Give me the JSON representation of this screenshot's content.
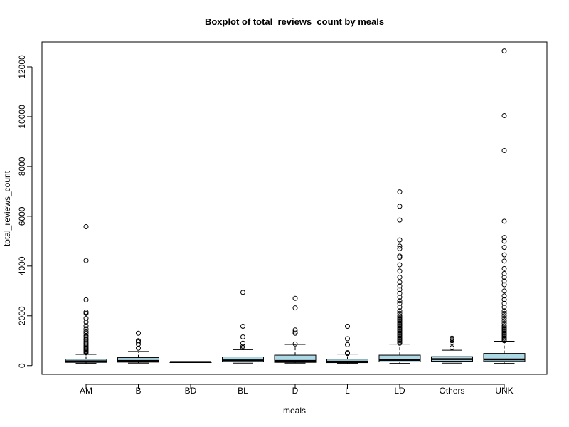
{
  "chart_data": {
    "type": "boxplot",
    "title": "Boxplot of total_reviews_count by meals",
    "xlabel": "meals",
    "ylabel": "total_reviews_count",
    "ylim": [
      -350,
      13000
    ],
    "yticks": [
      0,
      2000,
      4000,
      6000,
      8000,
      10000,
      12000
    ],
    "box_color": "#add8e6",
    "categories": [
      "AM",
      "B",
      "BD",
      "BL",
      "D",
      "L",
      "LD",
      "Others",
      "UNK"
    ],
    "boxes": [
      {
        "category": "AM",
        "whisker_low": 90,
        "q1": 130,
        "median": 175,
        "q3": 260,
        "whisker_high": 450,
        "outliers": [
          510,
          540,
          580,
          620,
          660,
          700,
          740,
          790,
          850,
          900,
          960,
          1030,
          1080,
          1150,
          1200,
          1300,
          1380,
          1480,
          1600,
          1750,
          1900,
          2100,
          2150,
          2640,
          4220,
          5580
        ]
      },
      {
        "category": "B",
        "whisker_low": 100,
        "q1": 140,
        "median": 190,
        "q3": 320,
        "whisker_high": 570,
        "outliers": [
          700,
          860,
          950,
          1000,
          1300
        ]
      },
      {
        "category": "BD",
        "whisker_low": 135,
        "q1": 140,
        "median": 145,
        "q3": 150,
        "whisker_high": 155,
        "outliers": []
      },
      {
        "category": "BL",
        "whisker_low": 100,
        "q1": 150,
        "median": 210,
        "q3": 350,
        "whisker_high": 640,
        "outliers": [
          720,
          780,
          900,
          1150,
          1580,
          2940
        ]
      },
      {
        "category": "D",
        "whisker_low": 100,
        "q1": 130,
        "median": 190,
        "q3": 420,
        "whisker_high": 850,
        "outliers": [
          870,
          1300,
          1350,
          1430,
          2320,
          2700
        ]
      },
      {
        "category": "L",
        "whisker_low": 90,
        "q1": 120,
        "median": 160,
        "q3": 260,
        "whisker_high": 460,
        "outliers": [
          490,
          520,
          840,
          1080,
          1580
        ]
      },
      {
        "category": "LD",
        "whisker_low": 90,
        "q1": 150,
        "median": 230,
        "q3": 420,
        "whisker_high": 860,
        "outliers": [
          900,
          950,
          1000,
          1050,
          1100,
          1150,
          1200,
          1250,
          1300,
          1350,
          1400,
          1450,
          1500,
          1550,
          1600,
          1650,
          1700,
          1750,
          1800,
          1850,
          1900,
          1950,
          2000,
          2100,
          2200,
          2350,
          2500,
          2600,
          2750,
          2900,
          3050,
          3200,
          3350,
          3550,
          3800,
          4050,
          4350,
          4400,
          4700,
          4800,
          5050,
          5850,
          6400,
          6980
        ]
      },
      {
        "category": "Others",
        "whisker_low": 100,
        "q1": 180,
        "median": 260,
        "q3": 360,
        "whisker_high": 620,
        "outliers": [
          720,
          920,
          1000,
          1050,
          1100
        ]
      },
      {
        "category": "UNK",
        "whisker_low": 90,
        "q1": 170,
        "median": 250,
        "q3": 490,
        "whisker_high": 980,
        "outliers": [
          1000,
          1050,
          1100,
          1150,
          1200,
          1250,
          1300,
          1350,
          1400,
          1450,
          1500,
          1550,
          1600,
          1700,
          1800,
          1900,
          2000,
          2100,
          2200,
          2350,
          2500,
          2650,
          2800,
          3000,
          3250,
          3400,
          3550,
          3700,
          3900,
          4200,
          4450,
          4750,
          5000,
          5150,
          5800,
          8640,
          10040,
          12640
        ]
      }
    ]
  }
}
